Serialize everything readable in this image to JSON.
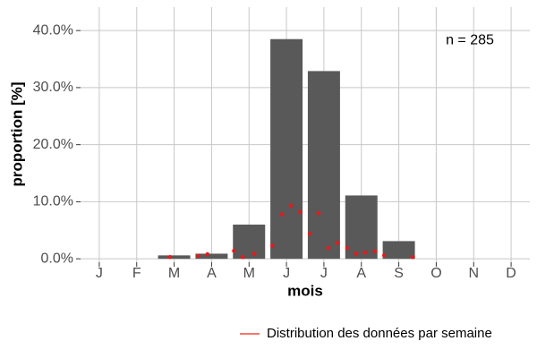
{
  "chart_data": {
    "type": "bar",
    "categories": [
      "J",
      "F",
      "M",
      "A",
      "M",
      "J",
      "J",
      "A",
      "S",
      "O",
      "N",
      "D"
    ],
    "values": [
      0,
      0,
      0.6,
      0.9,
      6.0,
      38.5,
      32.9,
      11.1,
      3.1,
      0,
      0,
      0
    ],
    "color": "#595959",
    "xlabel": "mois",
    "ylabel": "proportion [%]",
    "annotation": "n = 285",
    "xlim": [
      0.5,
      12.5
    ],
    "ylim": [
      -0.6,
      44.1
    ],
    "yticks": [
      {
        "value": 0,
        "label": "0.0%"
      },
      {
        "value": 10,
        "label": "10.0%"
      },
      {
        "value": 20,
        "label": "20.0%"
      },
      {
        "value": 30,
        "label": "30.0%"
      },
      {
        "value": 40,
        "label": "40.0%"
      }
    ],
    "grid": true,
    "legend": "bottom-right",
    "series": [
      {
        "name": "Distribution des données par semaine",
        "type": "line",
        "color": "#f8766d",
        "marker_color": "#e41a1c",
        "x": [
          2.89,
          3.65,
          3.89,
          4.6,
          4.84,
          5.15,
          5.63,
          5.89,
          6.13,
          6.37,
          6.63,
          6.87,
          7.13,
          7.37,
          7.63,
          7.87,
          8.11,
          8.37,
          8.61,
          9.38
        ],
        "values": [
          0.3,
          0.5,
          0.8,
          1.4,
          0.3,
          0.9,
          2.3,
          7.8,
          9.3,
          8.2,
          4.4,
          8.0,
          1.9,
          2.8,
          1.9,
          0.9,
          1.1,
          1.3,
          0.6,
          0.3
        ]
      }
    ]
  }
}
